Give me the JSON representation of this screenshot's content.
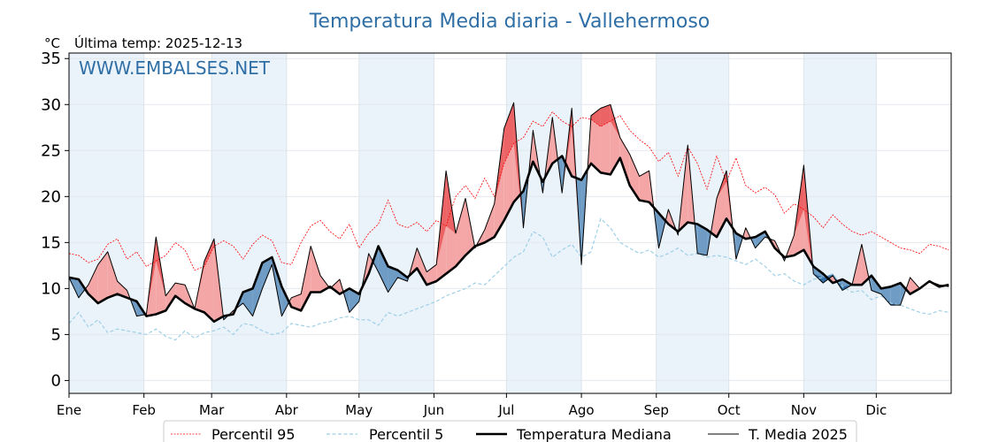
{
  "chart_data": {
    "type": "line",
    "title": "Temperatura Media diaria - Vallehermoso",
    "unit_label": "°C",
    "subtitle": "Última temp: 2025-12-13",
    "watermark": "WWW.EMBALSES.NET",
    "xlabel": "",
    "ylabel": "°C",
    "ylim": [
      -1.4,
      35.6
    ],
    "yticks": [
      0,
      5,
      10,
      15,
      20,
      25,
      30,
      35
    ],
    "xlim_days": [
      0,
      365
    ],
    "month_ticks": [
      {
        "label": "Ene",
        "day": 0
      },
      {
        "label": "Feb",
        "day": 31
      },
      {
        "label": "Mar",
        "day": 59
      },
      {
        "label": "Abr",
        "day": 90
      },
      {
        "label": "May",
        "day": 120
      },
      {
        "label": "Jun",
        "day": 151
      },
      {
        "label": "Jul",
        "day": 181
      },
      {
        "label": "Ago",
        "day": 212
      },
      {
        "label": "Sep",
        "day": 243
      },
      {
        "label": "Oct",
        "day": 273
      },
      {
        "label": "Nov",
        "day": 304
      },
      {
        "label": "Dic",
        "day": 334
      }
    ],
    "shaded_month_bands": [
      "Ene",
      "Mar",
      "May",
      "Jul",
      "Sep",
      "Nov"
    ],
    "grid": true,
    "legend_position": "bottom-center",
    "colors": {
      "p95": "#ff0000",
      "p5": "#9fd0e6",
      "median": "#000000",
      "current": "#000000",
      "above_fill": "#f4a6a6",
      "above_p95_fill": "#e8474a",
      "below_fill": "#6f9cc5",
      "below_p5_fill": "#1f5f99",
      "band": "#eaf2fa",
      "title": "#2f6fa5"
    },
    "legend": [
      {
        "key": "p95",
        "label": "Percentil 95"
      },
      {
        "key": "p5",
        "label": "Percentil 5"
      },
      {
        "key": "median",
        "label": "Temperatura Mediana"
      },
      {
        "key": "current",
        "label": "T. Media 2025"
      }
    ],
    "x_days": [
      0,
      4,
      8,
      12,
      16,
      20,
      24,
      28,
      32,
      36,
      40,
      44,
      48,
      52,
      56,
      60,
      64,
      68,
      72,
      76,
      80,
      84,
      88,
      92,
      96,
      100,
      104,
      108,
      112,
      116,
      120,
      124,
      128,
      132,
      136,
      140,
      144,
      148,
      152,
      156,
      160,
      164,
      168,
      172,
      176,
      180,
      184,
      188,
      192,
      196,
      200,
      204,
      208,
      212,
      216,
      220,
      224,
      228,
      232,
      236,
      240,
      244,
      248,
      252,
      256,
      260,
      264,
      268,
      272,
      276,
      280,
      284,
      288,
      292,
      296,
      300,
      304,
      308,
      312,
      316,
      320,
      324,
      328,
      332,
      336,
      340,
      344,
      348,
      352,
      356,
      360,
      364
    ],
    "series": [
      {
        "name": "Percentil 95",
        "key": "p95",
        "values": [
          13.8,
          13.6,
          12.8,
          13.2,
          14.8,
          15.4,
          13.2,
          14.0,
          12.4,
          13.0,
          13.6,
          15.0,
          14.2,
          12.0,
          12.4,
          14.6,
          15.2,
          14.6,
          13.2,
          14.8,
          15.8,
          15.2,
          12.8,
          12.6,
          15.0,
          16.8,
          17.4,
          16.2,
          15.4,
          17.0,
          14.4,
          16.0,
          17.0,
          19.6,
          17.0,
          16.6,
          17.2,
          16.2,
          17.4,
          16.8,
          20.0,
          21.2,
          19.8,
          22.0,
          20.0,
          23.6,
          25.8,
          26.4,
          28.2,
          27.6,
          29.2,
          28.2,
          27.6,
          28.6,
          28.4,
          27.6,
          28.2,
          28.8,
          27.2,
          26.2,
          25.4,
          23.8,
          24.8,
          22.2,
          25.4,
          23.6,
          20.8,
          24.4,
          21.6,
          24.2,
          21.2,
          20.4,
          21.0,
          20.2,
          18.2,
          19.2,
          18.6,
          17.8,
          16.6,
          18.0,
          17.0,
          16.2,
          15.8,
          16.2,
          15.6,
          15.0,
          14.4,
          14.2,
          13.8,
          14.8,
          14.6,
          14.2
        ]
      },
      {
        "name": "Percentil 5",
        "key": "p5",
        "values": [
          6.2,
          7.4,
          5.8,
          6.6,
          5.2,
          5.6,
          5.4,
          5.2,
          5.0,
          5.6,
          4.8,
          4.4,
          5.4,
          4.6,
          5.2,
          5.4,
          5.8,
          5.0,
          6.2,
          6.0,
          5.4,
          5.0,
          5.2,
          6.2,
          6.0,
          5.8,
          6.2,
          6.4,
          6.8,
          7.0,
          6.6,
          6.6,
          6.0,
          7.4,
          7.0,
          7.4,
          7.8,
          8.2,
          8.6,
          9.2,
          9.6,
          10.0,
          10.6,
          10.4,
          11.4,
          12.4,
          13.4,
          14.0,
          16.2,
          15.6,
          13.4,
          14.2,
          14.8,
          13.4,
          14.0,
          17.6,
          16.6,
          15.0,
          14.4,
          13.8,
          14.2,
          13.4,
          13.8,
          14.4,
          13.6,
          13.8,
          13.4,
          13.6,
          13.4,
          13.0,
          12.6,
          13.2,
          12.4,
          11.4,
          11.6,
          10.8,
          10.4,
          11.0,
          11.2,
          11.6,
          10.2,
          9.6,
          9.8,
          8.8,
          9.2,
          8.4,
          8.2,
          7.8,
          7.4,
          7.2,
          7.6,
          7.4
        ]
      },
      {
        "name": "Temperatura Mediana",
        "key": "median",
        "values": [
          11.2,
          11.0,
          9.4,
          8.4,
          9.0,
          9.4,
          9.0,
          8.6,
          7.0,
          7.2,
          7.6,
          9.2,
          8.4,
          7.8,
          7.4,
          6.4,
          7.0,
          7.2,
          9.6,
          10.0,
          12.8,
          13.4,
          10.2,
          8.0,
          7.6,
          9.6,
          9.6,
          10.2,
          9.4,
          10.0,
          9.4,
          11.6,
          14.6,
          12.4,
          12.0,
          11.2,
          12.2,
          10.4,
          10.8,
          11.6,
          12.4,
          13.6,
          14.6,
          15.0,
          15.6,
          17.4,
          19.4,
          20.6,
          23.8,
          21.6,
          23.6,
          24.4,
          22.2,
          21.8,
          23.6,
          22.6,
          22.4,
          24.2,
          21.2,
          19.6,
          19.4,
          18.2,
          17.0,
          16.2,
          17.2,
          17.0,
          16.4,
          15.6,
          17.6,
          16.0,
          15.4,
          15.6,
          16.2,
          14.4,
          13.4,
          13.6,
          14.2,
          12.4,
          11.6,
          10.6,
          11.0,
          10.4,
          10.4,
          11.4,
          10.0,
          10.2,
          10.6,
          9.4,
          10.0,
          10.8,
          10.2,
          10.4
        ]
      },
      {
        "name": "T. Media 2025",
        "key": "current",
        "values": [
          11.2,
          9.0,
          10.4,
          12.6,
          14.0,
          10.8,
          9.8,
          7.0,
          7.2,
          15.6,
          9.2,
          10.6,
          10.4,
          7.8,
          13.0,
          15.4,
          6.6,
          7.6,
          8.4,
          7.0,
          10.0,
          12.6,
          7.0,
          9.0,
          9.4,
          14.6,
          11.4,
          10.0,
          11.0,
          7.4,
          8.6,
          13.8,
          11.8,
          9.6,
          11.2,
          10.8,
          14.4,
          11.8,
          12.6,
          22.8,
          16.0,
          19.8,
          14.4,
          16.4,
          19.2,
          27.4,
          30.2,
          16.6,
          27.2,
          20.4,
          28.6,
          20.4,
          29.6,
          12.6,
          28.8,
          29.6,
          30.0,
          26.4,
          24.6,
          22.2,
          22.8,
          14.4,
          18.6,
          15.8,
          25.6,
          13.8,
          13.6,
          19.8,
          22.8,
          13.2,
          16.6,
          14.4,
          15.6,
          15.2,
          13.0,
          15.8,
          23.4,
          11.6,
          10.6,
          11.4,
          9.8,
          10.4,
          14.8,
          9.8,
          9.4,
          8.2,
          8.2,
          11.2,
          10.0,
          10.8,
          10.4,
          10.2
        ]
      }
    ]
  }
}
